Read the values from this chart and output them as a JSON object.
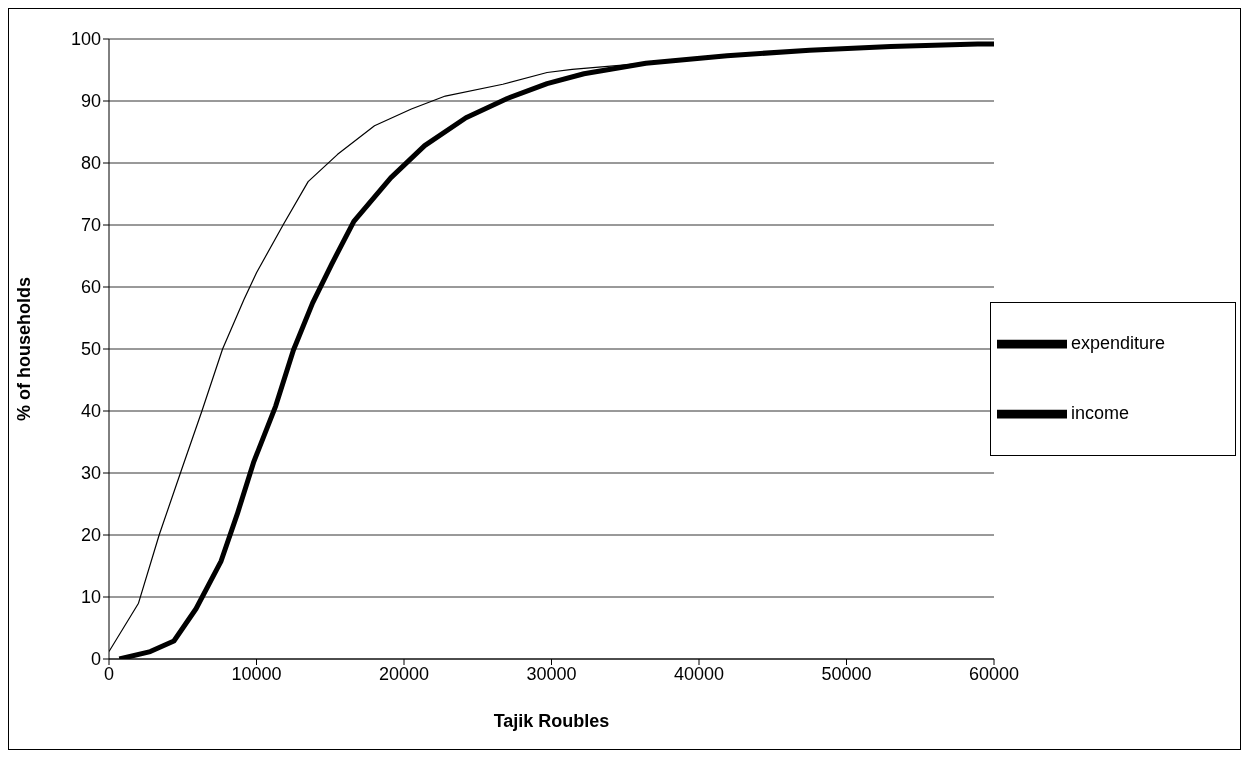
{
  "chart_data": {
    "type": "line",
    "xlabel": "Tajik Roubles",
    "ylabel": "% of households",
    "xlim": [
      0,
      60000
    ],
    "xticks": [
      0,
      10000,
      20000,
      30000,
      40000,
      50000,
      60000
    ],
    "ylim": [
      0,
      100
    ],
    "yticks": [
      0,
      10,
      20,
      30,
      40,
      50,
      60,
      70,
      80,
      90,
      100
    ],
    "grid": "y",
    "legend": "right",
    "marker": "none",
    "line_style": "solid",
    "series": [
      {
        "name": "expenditure",
        "color": "#000000",
        "x": [
          700,
          2800,
          4400,
          5900,
          7600,
          8700,
          9800,
          11300,
          12500,
          13800,
          15100,
          16600,
          19100,
          21400,
          24200,
          27000,
          29700,
          32200,
          36400,
          41900,
          47500,
          53000,
          58900,
          60000
        ],
        "values": [
          0,
          1.2,
          2.9,
          8.1,
          15.8,
          23.4,
          31.7,
          40.8,
          49.8,
          57.4,
          63.7,
          70.6,
          77.6,
          82.8,
          87.3,
          90.4,
          92.8,
          94.4,
          96.1,
          97.3,
          98.2,
          98.8,
          99.2,
          99.2
        ]
      },
      {
        "name": "income",
        "color": "#000000",
        "x": [
          0,
          2000,
          3400,
          4900,
          6300,
          7700,
          9150,
          10000,
          11800,
          13500,
          15500,
          18000,
          20500,
          22800,
          26700,
          29700,
          31400,
          36400,
          41900,
          47500,
          53000,
          58900,
          60000
        ],
        "values": [
          1.2,
          9,
          20,
          30.4,
          40,
          50,
          58,
          62.3,
          70,
          77,
          81.4,
          86,
          88.7,
          90.8,
          92.7,
          94.6,
          95.1,
          96.1,
          97.3,
          98.2,
          98.8,
          99.2,
          99.2
        ]
      }
    ]
  }
}
